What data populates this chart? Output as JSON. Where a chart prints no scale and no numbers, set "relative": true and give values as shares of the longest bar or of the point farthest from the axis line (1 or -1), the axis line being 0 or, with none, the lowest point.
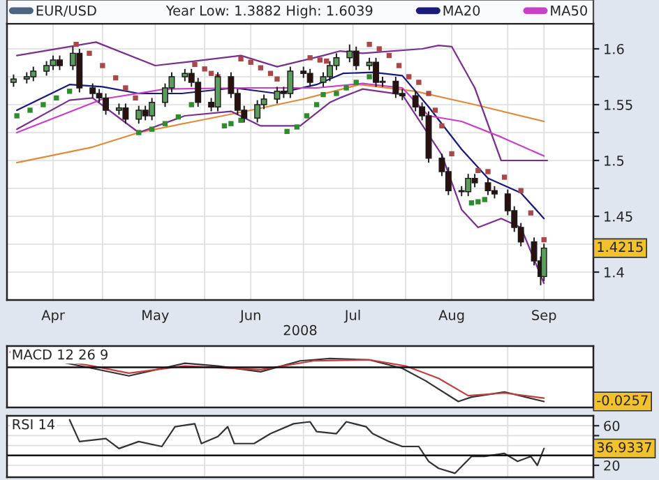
{
  "chart_data": [
    {
      "type": "candlestick",
      "xlabel": "2008",
      "legend": "top",
      "grid": true,
      "annotations": [
        "Year Low: 1.3882 High: 1.6039",
        "1.4215"
      ],
      "xlim": [
        "2008-04-02",
        "2008-09-27"
      ],
      "xticks": [
        {
          "value": "2008-04-16",
          "label": "Apr"
        },
        {
          "value": "2008-05-01",
          "label": null
        },
        {
          "value": "2008-05-17",
          "label": "May"
        },
        {
          "value": "2008-06-01",
          "label": null
        },
        {
          "value": "2008-06-15",
          "label": "Jun"
        },
        {
          "value": "2008-07-01",
          "label": null
        },
        {
          "value": "2008-07-16",
          "label": "Jul"
        },
        {
          "value": "2008-08-01",
          "label": null
        },
        {
          "value": "2008-08-15",
          "label": "Aug"
        },
        {
          "value": "2008-09-01",
          "label": null
        },
        {
          "value": "2008-09-12",
          "label": "Sep"
        }
      ],
      "ylim": [
        1.375,
        1.6225
      ],
      "yticks": [
        1.4,
        {
          "value": 1.425,
          "label": null
        },
        1.45,
        {
          "value": 1.475,
          "label": null
        },
        1.5,
        {
          "value": 1.525,
          "label": null
        },
        1.55,
        {
          "value": 1.575,
          "label": null
        },
        1.6
      ],
      "series": [
        {
          "type": "line",
          "color": "#e08a3c",
          "x": [
            "2008-04-05",
            "2008-04-28",
            "2008-05-12",
            "2008-05-29",
            "2008-06-15",
            "2008-07-01",
            "2008-07-18",
            "2008-08-04",
            "2008-08-22",
            "2008-09-12"
          ],
          "values": [
            1.498,
            1.512,
            1.525,
            1.535,
            1.545,
            1.555,
            1.568,
            1.562,
            1.55,
            1.535
          ]
        },
        {
          "type": "line",
          "color": "#7a2f8f",
          "x": [
            "2008-04-05",
            "2008-04-21",
            "2008-04-29",
            "2008-05-17",
            "2008-05-29",
            "2008-06-12",
            "2008-06-23",
            "2008-07-07",
            "2008-07-12",
            "2008-07-19",
            "2008-08-06",
            "2008-08-11",
            "2008-08-15",
            "2008-08-22",
            "2008-08-30",
            "2008-09-05",
            "2008-09-10",
            "2008-09-13"
          ],
          "values": [
            1.594,
            1.602,
            1.606,
            1.585,
            1.589,
            1.594,
            1.584,
            1.594,
            1.598,
            1.596,
            1.6,
            1.603,
            1.602,
            1.565,
            1.5,
            1.5,
            1.5,
            1.5
          ]
        },
        {
          "type": "line",
          "color": "#7a2f8f",
          "x": [
            "2008-04-05",
            "2008-04-21",
            "2008-04-28",
            "2008-05-12",
            "2008-05-26",
            "2008-06-09",
            "2008-06-18",
            "2008-06-30",
            "2008-07-09",
            "2008-07-12",
            "2008-07-19",
            "2008-07-31",
            "2008-08-12",
            "2008-08-18",
            "2008-08-23",
            "2008-08-30",
            "2008-09-05",
            "2008-09-12"
          ],
          "values": [
            1.528,
            1.554,
            1.556,
            1.525,
            1.54,
            1.544,
            1.531,
            1.531,
            1.552,
            1.556,
            1.564,
            1.559,
            1.505,
            1.456,
            1.44,
            1.448,
            1.44,
            1.39
          ]
        },
        {
          "type": "line",
          "name": "MA20",
          "color": "#1a1a7a",
          "x": [
            "2008-04-05",
            "2008-04-21",
            "2008-05-01",
            "2008-05-12",
            "2008-05-25",
            "2008-06-10",
            "2008-06-23",
            "2008-07-05",
            "2008-07-13",
            "2008-07-22",
            "2008-07-31",
            "2008-08-08",
            "2008-08-18",
            "2008-08-26",
            "2008-09-05",
            "2008-09-12"
          ],
          "values": [
            1.545,
            1.568,
            1.566,
            1.56,
            1.56,
            1.565,
            1.56,
            1.568,
            1.578,
            1.579,
            1.576,
            1.548,
            1.51,
            1.484,
            1.471,
            1.448
          ]
        },
        {
          "type": "line",
          "name": "MA50",
          "color": "#c840c8",
          "x": [
            "2008-04-05",
            "2008-05-01",
            "2008-05-20",
            "2008-06-13",
            "2008-07-05",
            "2008-07-19",
            "2008-07-31",
            "2008-08-08",
            "2008-08-18",
            "2008-08-30",
            "2008-09-12"
          ],
          "values": [
            1.525,
            1.555,
            1.564,
            1.565,
            1.565,
            1.569,
            1.565,
            1.54,
            1.535,
            1.521,
            1.504
          ]
        },
        {
          "type": "scatter",
          "marker": "square",
          "color": "#a84848",
          "x": [
            "2008-04-23",
            "2008-04-27",
            "2008-05-01",
            "2008-05-05",
            "2008-05-08",
            "2008-05-11",
            "2008-05-29",
            "2008-06-01",
            "2008-06-03",
            "2008-06-05",
            "2008-06-12",
            "2008-06-15",
            "2008-06-18",
            "2008-06-21",
            "2008-06-23",
            "2008-07-03",
            "2008-07-06",
            "2008-07-08",
            "2008-07-21",
            "2008-07-24",
            "2008-07-27",
            "2008-07-30",
            "2008-08-02",
            "2008-08-05",
            "2008-08-08",
            "2008-08-10",
            "2008-08-12",
            "2008-08-15",
            "2008-08-23",
            "2008-08-26",
            "2008-08-31",
            "2008-09-05",
            "2008-09-08",
            "2008-09-12"
          ],
          "values": [
            1.604,
            1.596,
            1.585,
            1.574,
            1.565,
            1.556,
            1.586,
            1.582,
            1.578,
            1.575,
            1.591,
            1.588,
            1.583,
            1.578,
            1.573,
            1.592,
            1.59,
            1.589,
            1.604,
            1.6,
            1.594,
            1.585,
            1.575,
            1.57,
            1.56,
            1.545,
            1.531,
            1.506,
            1.491,
            1.49,
            1.485,
            1.473,
            1.453,
            1.429
          ]
        },
        {
          "type": "scatter",
          "marker": "square",
          "color": "#2e8b2e",
          "x": [
            "2008-04-05",
            "2008-04-09",
            "2008-04-13",
            "2008-04-17",
            "2008-04-21",
            "2008-05-12",
            "2008-05-16",
            "2008-05-20",
            "2008-05-24",
            "2008-05-28",
            "2008-06-07",
            "2008-06-09",
            "2008-06-12",
            "2008-06-26",
            "2008-06-29",
            "2008-07-02",
            "2008-07-05",
            "2008-07-07",
            "2008-07-11",
            "2008-07-14",
            "2008-07-17",
            "2008-07-21",
            "2008-08-21",
            "2008-08-23",
            "2008-08-25"
          ],
          "values": [
            1.54,
            1.545,
            1.55,
            1.556,
            1.562,
            1.525,
            1.528,
            1.533,
            1.539,
            1.55,
            1.531,
            1.533,
            1.536,
            1.526,
            1.53,
            1.54,
            1.55,
            1.559,
            1.56,
            1.565,
            1.57,
            1.575,
            1.462,
            1.463,
            1.465
          ]
        },
        {
          "type": "candlestick",
          "name": "EUR/USD",
          "color": "#4d6480",
          "x": [
            "2008-04-04",
            "2008-04-08",
            "2008-04-10",
            "2008-04-14",
            "2008-04-16",
            "2008-04-18",
            "2008-04-22",
            "2008-04-24",
            "2008-04-28",
            "2008-04-30",
            "2008-05-02",
            "2008-05-06",
            "2008-05-08",
            "2008-05-12",
            "2008-05-14",
            "2008-05-16",
            "2008-05-20",
            "2008-05-22",
            "2008-05-26",
            "2008-05-28",
            "2008-05-30",
            "2008-06-03",
            "2008-06-05",
            "2008-06-09",
            "2008-06-11",
            "2008-06-13",
            "2008-06-17",
            "2008-06-19",
            "2008-06-23",
            "2008-06-25",
            "2008-06-27",
            "2008-07-01",
            "2008-07-03",
            "2008-07-07",
            "2008-07-09",
            "2008-07-11",
            "2008-07-15",
            "2008-07-17",
            "2008-07-21",
            "2008-07-23",
            "2008-07-25",
            "2008-07-29",
            "2008-07-31",
            "2008-08-04",
            "2008-08-06",
            "2008-08-08",
            "2008-08-12",
            "2008-08-14",
            "2008-08-18",
            "2008-08-20",
            "2008-08-22",
            "2008-08-26",
            "2008-08-28",
            "2008-09-01",
            "2008-09-03",
            "2008-09-05",
            "2008-09-09",
            "2008-09-11",
            "2008-09-12"
          ],
          "ohlc": [
            [
              1.57,
              1.577,
              1.566,
              1.573
            ],
            [
              1.573,
              1.579,
              1.569,
              1.575
            ],
            [
              1.575,
              1.584,
              1.571,
              1.58
            ],
            [
              1.58,
              1.589,
              1.576,
              1.585
            ],
            [
              1.585,
              1.594,
              1.581,
              1.59
            ],
            [
              1.59,
              1.594,
              1.581,
              1.585
            ],
            [
              1.585,
              1.602,
              1.581,
              1.596
            ],
            [
              1.596,
              1.6,
              1.561,
              1.565
            ],
            [
              1.565,
              1.569,
              1.556,
              1.56
            ],
            [
              1.56,
              1.564,
              1.552,
              1.556
            ],
            [
              1.556,
              1.56,
              1.541,
              1.545
            ],
            [
              1.545,
              1.551,
              1.541,
              1.547
            ],
            [
              1.547,
              1.551,
              1.533,
              1.537
            ],
            [
              1.537,
              1.549,
              1.533,
              1.545
            ],
            [
              1.545,
              1.549,
              1.536,
              1.54
            ],
            [
              1.54,
              1.556,
              1.536,
              1.552
            ],
            [
              1.552,
              1.569,
              1.548,
              1.565
            ],
            [
              1.565,
              1.579,
              1.561,
              1.575
            ],
            [
              1.575,
              1.582,
              1.571,
              1.578
            ],
            [
              1.578,
              1.582,
              1.566,
              1.57
            ],
            [
              1.57,
              1.574,
              1.548,
              1.552
            ],
            [
              1.552,
              1.556,
              1.544,
              1.548
            ],
            [
              1.548,
              1.579,
              1.544,
              1.575
            ],
            [
              1.575,
              1.579,
              1.556,
              1.56
            ],
            [
              1.56,
              1.564,
              1.541,
              1.545
            ],
            [
              1.545,
              1.549,
              1.534,
              1.538
            ],
            [
              1.538,
              1.554,
              1.534,
              1.55
            ],
            [
              1.55,
              1.559,
              1.546,
              1.555
            ],
            [
              1.555,
              1.566,
              1.551,
              1.562
            ],
            [
              1.562,
              1.566,
              1.556,
              1.56
            ],
            [
              1.56,
              1.584,
              1.556,
              1.58
            ],
            [
              1.58,
              1.584,
              1.574,
              1.578
            ],
            [
              1.578,
              1.582,
              1.566,
              1.57
            ],
            [
              1.57,
              1.579,
              1.566,
              1.575
            ],
            [
              1.575,
              1.589,
              1.571,
              1.585
            ],
            [
              1.585,
              1.596,
              1.581,
              1.592
            ],
            [
              1.592,
              1.6039,
              1.588,
              1.598
            ],
            [
              1.598,
              1.602,
              1.581,
              1.585
            ],
            [
              1.585,
              1.592,
              1.581,
              1.588
            ],
            [
              1.588,
              1.592,
              1.566,
              1.57
            ],
            [
              1.57,
              1.575,
              1.566,
              1.571
            ],
            [
              1.571,
              1.575,
              1.556,
              1.56
            ],
            [
              1.56,
              1.564,
              1.554,
              1.558
            ],
            [
              1.558,
              1.562,
              1.544,
              1.548
            ],
            [
              1.548,
              1.552,
              1.536,
              1.54
            ],
            [
              1.54,
              1.544,
              1.498,
              1.502
            ],
            [
              1.502,
              1.506,
              1.486,
              1.49
            ],
            [
              1.49,
              1.494,
              1.469,
              1.473
            ],
            [
              1.473,
              1.477,
              1.468,
              1.472
            ],
            [
              1.472,
              1.488,
              1.468,
              1.484
            ],
            [
              1.484,
              1.488,
              1.476,
              1.48
            ],
            [
              1.48,
              1.484,
              1.469,
              1.473
            ],
            [
              1.473,
              1.477,
              1.466,
              1.47
            ],
            [
              1.47,
              1.474,
              1.451,
              1.455
            ],
            [
              1.455,
              1.459,
              1.436,
              1.44
            ],
            [
              1.44,
              1.444,
              1.423,
              1.427
            ],
            [
              1.427,
              1.431,
              1.406,
              1.41
            ],
            [
              1.41,
              1.414,
              1.3882,
              1.396
            ],
            [
              1.396,
              1.4255,
              1.392,
              1.4215
            ]
          ],
          "colors": [
            "#5c9c5c",
            "#5c9c5c",
            "#5c9c5c",
            "#5c9c5c",
            "#5c9c5c",
            "#2b1010",
            "#5c9c5c",
            "#2b1010",
            "#2b1010",
            "#2b1010",
            "#2b1010",
            "#5c9c5c",
            "#2b1010",
            "#5c9c5c",
            "#2b1010",
            "#5c9c5c",
            "#5c9c5c",
            "#5c9c5c",
            "#5c9c5c",
            "#2b1010",
            "#2b1010",
            "#2b1010",
            "#5c9c5c",
            "#2b1010",
            "#2b1010",
            "#2b1010",
            "#5c9c5c",
            "#5c9c5c",
            "#5c9c5c",
            "#2b1010",
            "#5c9c5c",
            "#2b1010",
            "#2b1010",
            "#5c9c5c",
            "#5c9c5c",
            "#5c9c5c",
            "#5c9c5c",
            "#2b1010",
            "#5c9c5c",
            "#2b1010",
            "#5c9c5c",
            "#2b1010",
            "#2b1010",
            "#2b1010",
            "#2b1010",
            "#2b1010",
            "#2b1010",
            "#2b1010",
            "#2b1010",
            "#5c9c5c",
            "#2b1010",
            "#2b1010",
            "#2b1010",
            "#2b1010",
            "#2b1010",
            "#2b1010",
            "#2b1010",
            "#2b1010",
            "#5c9c5c"
          ]
        }
      ]
    },
    {
      "type": "line",
      "title": "MACD 12 26 9",
      "relative": true,
      "tick_labels": false,
      "grid": "x",
      "annotations": [
        "-0.0257"
      ],
      "ref_lines": [
        {
          "axis": "y",
          "value": 0
        }
      ],
      "xlim": [
        "2008-04-02",
        "2008-09-27"
      ],
      "xticks": [
        {
          "value": "2008-05-01",
          "label": null
        },
        {
          "value": "2008-06-01",
          "label": null
        },
        {
          "value": "2008-07-01",
          "label": null
        },
        {
          "value": "2008-08-01",
          "label": null
        },
        {
          "value": "2008-09-01",
          "label": null
        }
      ],
      "series": [
        {
          "color": "#333333",
          "x": [
            "2008-04-03",
            "2008-04-28",
            "2008-05-09",
            "2008-05-26",
            "2008-06-05",
            "2008-06-18",
            "2008-06-30",
            "2008-07-09",
            "2008-07-21",
            "2008-07-31",
            "2008-08-07",
            "2008-08-17",
            "2008-08-21",
            "2008-08-31",
            "2008-09-06",
            "2008-09-12"
          ],
          "values": [
            0.45,
            -0.03,
            -0.25,
            0.12,
            0.04,
            -0.13,
            0.19,
            0.26,
            0.22,
            -0.03,
            -0.39,
            -1,
            -0.87,
            -0.72,
            -0.86,
            -1
          ]
        },
        {
          "color": "#c04040",
          "x": [
            "2008-04-03",
            "2008-04-28",
            "2008-05-09",
            "2008-05-26",
            "2008-06-18",
            "2008-07-04",
            "2008-07-21",
            "2008-08-01",
            "2008-08-11",
            "2008-08-20",
            "2008-08-31",
            "2008-09-12"
          ],
          "values": [
            0.45,
            0.04,
            -0.17,
            0.04,
            -0.07,
            0.19,
            0.22,
            0.04,
            -0.32,
            -0.83,
            -0.75,
            -0.9
          ]
        }
      ]
    },
    {
      "type": "line",
      "title": "RSI 14",
      "tick_labels": "y",
      "grid": true,
      "annotations": [
        "36.9337"
      ],
      "ref_lines": [
        {
          "axis": "y",
          "value": 30
        }
      ],
      "xlim": [
        "2008-04-02",
        "2008-09-27"
      ],
      "xticks": [
        {
          "value": "2008-05-01",
          "label": null
        },
        {
          "value": "2008-06-01",
          "label": null
        },
        {
          "value": "2008-07-01",
          "label": null
        },
        {
          "value": "2008-08-01",
          "label": null
        },
        {
          "value": "2008-09-01",
          "label": null
        }
      ],
      "ylim": [
        8,
        70
      ],
      "yticks": [
        20,
        {
          "value": 30,
          "label": null
        },
        {
          "value": 40,
          "label": null
        },
        {
          "value": 50,
          "label": null
        },
        60
      ],
      "series": [
        {
          "color": "#333333",
          "x": [
            "2008-04-21",
            "2008-04-24",
            "2008-05-02",
            "2008-05-06",
            "2008-05-12",
            "2008-05-19",
            "2008-05-23",
            "2008-05-29",
            "2008-05-31",
            "2008-06-05",
            "2008-06-08",
            "2008-06-10",
            "2008-06-16",
            "2008-06-21",
            "2008-06-28",
            "2008-07-03",
            "2008-07-05",
            "2008-07-11",
            "2008-07-14",
            "2008-07-20",
            "2008-07-22",
            "2008-07-27",
            "2008-07-31",
            "2008-08-05",
            "2008-08-08",
            "2008-08-11",
            "2008-08-16",
            "2008-08-21",
            "2008-08-25",
            "2008-08-31",
            "2008-09-04",
            "2008-09-08",
            "2008-09-10",
            "2008-09-12"
          ],
          "values": [
            66,
            44,
            47,
            37,
            44,
            39,
            59,
            62,
            42,
            49,
            59,
            42,
            42,
            52,
            62,
            64,
            54,
            52,
            64,
            59,
            52,
            44,
            39,
            39,
            24,
            17,
            12,
            29,
            29,
            32,
            24,
            29,
            20,
            37
          ]
        }
      ]
    }
  ]
}
